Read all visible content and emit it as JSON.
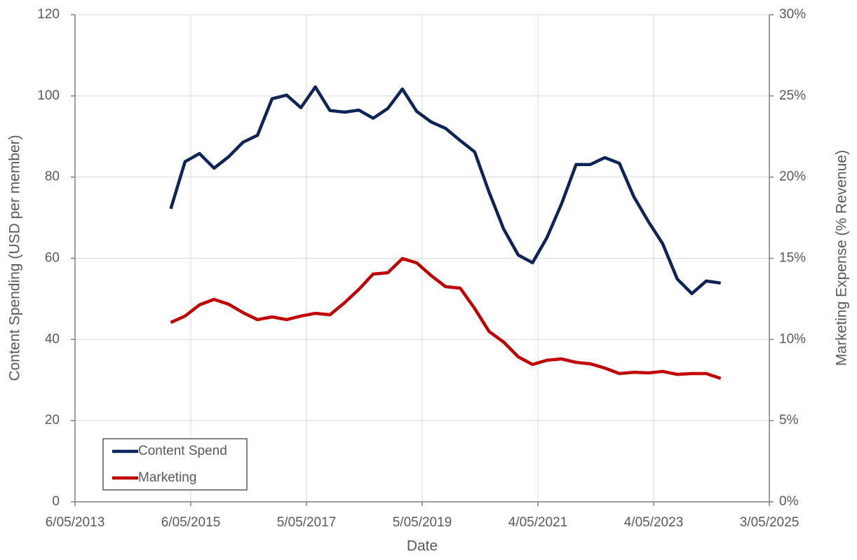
{
  "chart_data": {
    "type": "line",
    "x_label": "Date",
    "y_label": "Content Spending (USD per member)",
    "y2_label": "Marketing Expense (% Revenue)",
    "x": [
      "2014-12-31",
      "2015-03-31",
      "2015-06-30",
      "2015-09-30",
      "2015-12-31",
      "2016-03-31",
      "2016-06-30",
      "2016-09-30",
      "2016-12-31",
      "2017-03-31",
      "2017-06-30",
      "2017-09-30",
      "2017-12-31",
      "2018-03-31",
      "2018-06-30",
      "2018-09-30",
      "2018-12-31",
      "2019-03-31",
      "2019-06-30",
      "2019-09-30",
      "2019-12-31",
      "2020-03-31",
      "2020-06-30",
      "2020-09-30",
      "2020-12-31",
      "2021-03-31",
      "2021-06-30",
      "2021-09-30",
      "2021-12-31",
      "2022-03-31",
      "2022-06-30",
      "2022-09-30",
      "2022-12-31",
      "2023-03-31",
      "2023-06-30",
      "2023-09-30",
      "2023-12-31",
      "2024-03-31",
      "2024-06-30"
    ],
    "series": [
      {
        "name": "Content Spend",
        "color": "#0e2357",
        "axis": "y",
        "values": [
          72.2,
          83.8,
          85.8,
          82.2,
          85,
          88.6,
          90.3,
          99.3,
          100.2,
          97.1,
          102.2,
          96.4,
          96,
          96.5,
          94.5,
          96.9,
          101.7,
          96.2,
          93.6,
          92,
          89,
          86.2,
          76.3,
          67.2,
          60.8,
          58.9,
          65.1,
          73.4,
          83.1,
          83.1,
          84.8,
          83.4,
          75.1,
          69.1,
          63.6,
          54.9,
          51.3,
          54.4,
          53.9
        ]
      },
      {
        "name": "Marketing",
        "color": "#c00000",
        "axis": "y2",
        "values": [
          11.05,
          11.44,
          12.13,
          12.47,
          12.17,
          11.65,
          11.22,
          11.39,
          11.22,
          11.44,
          11.61,
          11.52,
          12.26,
          13.08,
          14.03,
          14.11,
          14.98,
          14.72,
          13.94,
          13.25,
          13.16,
          11.91,
          10.49,
          9.84,
          8.93,
          8.46,
          8.72,
          8.8,
          8.59,
          8.5,
          8.24,
          7.9,
          7.98,
          7.94,
          8.03,
          7.85,
          7.9,
          7.9,
          7.6
        ]
      }
    ],
    "xlim": [
      "2013-05-06",
      "2025-05-03"
    ],
    "xticks": [
      {
        "value": "2013-05-06",
        "label": "6/05/2013"
      },
      {
        "value": "2015-05-06",
        "label": "6/05/2015"
      },
      {
        "value": "2017-05-05",
        "label": "5/05/2017"
      },
      {
        "value": "2019-05-05",
        "label": "5/05/2019"
      },
      {
        "value": "2021-05-04",
        "label": "4/05/2021"
      },
      {
        "value": "2023-05-04",
        "label": "4/05/2023"
      },
      {
        "value": "2025-05-03",
        "label": "3/05/2025"
      }
    ],
    "ylim": [
      0,
      120
    ],
    "yticks": [
      0,
      20,
      40,
      60,
      80,
      100,
      120
    ],
    "y2lim": [
      0,
      30
    ],
    "y2ticks": [
      {
        "value": 0,
        "label": "0%"
      },
      {
        "value": 5,
        "label": "5%"
      },
      {
        "value": 10,
        "label": "10%"
      },
      {
        "value": 15,
        "label": "15%"
      },
      {
        "value": 20,
        "label": "20%"
      },
      {
        "value": 25,
        "label": "25%"
      },
      {
        "value": 30,
        "label": "30%"
      }
    ],
    "grid": true,
    "legend": "lower left"
  }
}
